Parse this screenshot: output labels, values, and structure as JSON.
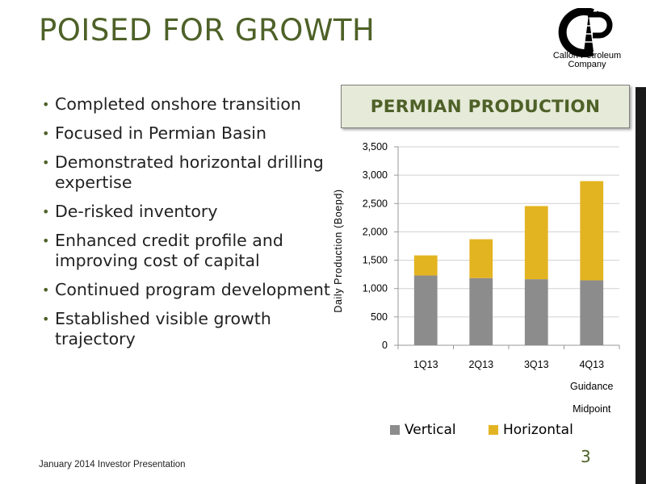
{
  "slide": {
    "title": "POISED FOR GROWTH",
    "logo_text": "Callon Petroleum Company",
    "bullets": [
      "Completed onshore transition",
      "Focused in Permian Basin",
      "Demonstrated horizontal drilling expertise",
      "De-risked inventory",
      "Enhanced credit profile and improving cost of capital",
      "Continued program development",
      "Established visible growth trajectory"
    ],
    "chart_header": "PERMIAN PRODUCTION",
    "footer": "January 2014 Investor Presentation",
    "page_number": "3"
  },
  "chart_data": {
    "type": "bar",
    "stacked": true,
    "categories": [
      "1Q13",
      "2Q13",
      "3Q13",
      "4Q13"
    ],
    "category_notes": [
      "",
      "",
      "",
      "Guidance Midpoint"
    ],
    "series": [
      {
        "name": "Vertical",
        "values": [
          1230,
          1185,
          1165,
          1145
        ],
        "color": "#8c8c8c"
      },
      {
        "name": "Horizontal",
        "values": [
          355,
          685,
          1290,
          1750
        ],
        "color": "#e3b421"
      }
    ],
    "ylabel": "Daily Production (Boepd)",
    "ylim": [
      0,
      3500
    ],
    "yticks": [
      0,
      500,
      1000,
      1500,
      2000,
      2500,
      3000,
      3500
    ],
    "ytick_labels": [
      "0",
      "500",
      "1,000",
      "1,500",
      "2,000",
      "2,500",
      "3,000",
      "3,500"
    ],
    "grid": "horizontal",
    "legend_position": "bottom"
  }
}
